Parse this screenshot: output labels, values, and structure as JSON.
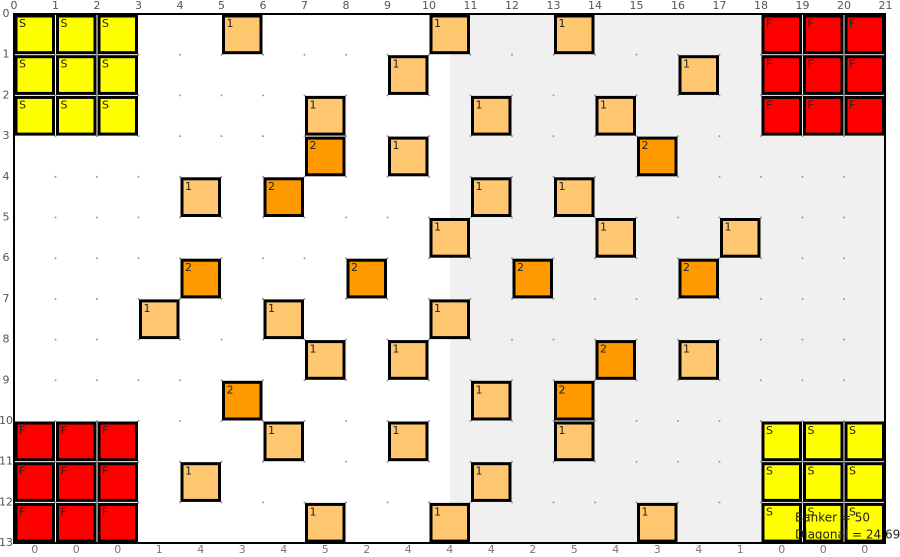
{
  "top_labels": [
    0,
    1,
    2,
    3,
    4,
    5,
    6,
    7,
    8,
    9,
    10,
    11,
    12,
    13,
    14,
    15,
    16,
    17,
    18,
    19,
    20,
    21
  ],
  "left_labels": [
    0,
    1,
    2,
    3,
    4,
    5,
    6,
    7,
    8,
    9,
    10,
    11,
    12,
    13
  ],
  "column_sums": [
    0,
    0,
    0,
    1,
    4,
    3,
    4,
    5,
    2,
    4,
    4,
    4,
    2,
    5,
    4,
    3,
    4,
    1,
    0,
    0,
    0
  ],
  "board": [
    [
      "S",
      "S",
      "S",
      null,
      null,
      1,
      null,
      null,
      null,
      null,
      1,
      null,
      null,
      1,
      null,
      null,
      null,
      null,
      "F",
      "F",
      "F"
    ],
    [
      "S",
      "S",
      "S",
      null,
      null,
      null,
      null,
      null,
      null,
      1,
      null,
      null,
      null,
      null,
      null,
      null,
      1,
      null,
      "F",
      "F",
      "F"
    ],
    [
      "S",
      "S",
      "S",
      null,
      null,
      null,
      null,
      1,
      null,
      null,
      null,
      1,
      null,
      null,
      1,
      null,
      null,
      null,
      "F",
      "F",
      "F"
    ],
    [
      null,
      null,
      null,
      null,
      null,
      null,
      null,
      2,
      null,
      1,
      null,
      null,
      null,
      null,
      null,
      2,
      null,
      null,
      null,
      null,
      null
    ],
    [
      null,
      null,
      null,
      null,
      1,
      null,
      2,
      null,
      null,
      null,
      null,
      1,
      null,
      1,
      null,
      null,
      null,
      null,
      null,
      null,
      null
    ],
    [
      null,
      null,
      null,
      null,
      null,
      null,
      null,
      null,
      null,
      null,
      1,
      null,
      null,
      null,
      1,
      null,
      null,
      1,
      null,
      null,
      null
    ],
    [
      null,
      null,
      null,
      null,
      2,
      null,
      null,
      null,
      2,
      null,
      null,
      null,
      2,
      null,
      null,
      null,
      2,
      null,
      null,
      null,
      null
    ],
    [
      null,
      null,
      null,
      1,
      null,
      null,
      1,
      null,
      null,
      null,
      1,
      null,
      null,
      null,
      null,
      null,
      null,
      null,
      null,
      null,
      null
    ],
    [
      null,
      null,
      null,
      null,
      null,
      null,
      null,
      1,
      null,
      1,
      null,
      null,
      null,
      null,
      2,
      null,
      1,
      null,
      null,
      null,
      null
    ],
    [
      null,
      null,
      null,
      null,
      null,
      2,
      null,
      null,
      null,
      null,
      null,
      1,
      null,
      2,
      null,
      null,
      null,
      null,
      null,
      null,
      null
    ],
    [
      "F",
      "F",
      "F",
      null,
      null,
      null,
      1,
      null,
      null,
      1,
      null,
      null,
      null,
      1,
      null,
      null,
      null,
      null,
      "S",
      "S",
      "S"
    ],
    [
      "F",
      "F",
      "F",
      null,
      1,
      null,
      null,
      null,
      null,
      null,
      null,
      1,
      null,
      null,
      null,
      null,
      null,
      null,
      "S",
      "S",
      "S"
    ],
    [
      "F",
      "F",
      "F",
      null,
      null,
      null,
      null,
      1,
      null,
      null,
      1,
      null,
      null,
      null,
      null,
      1,
      null,
      null,
      "S",
      "S",
      "S"
    ]
  ],
  "status": {
    "banker": "Banker = 50",
    "diagonal": "Diagonal = 24.69"
  }
}
